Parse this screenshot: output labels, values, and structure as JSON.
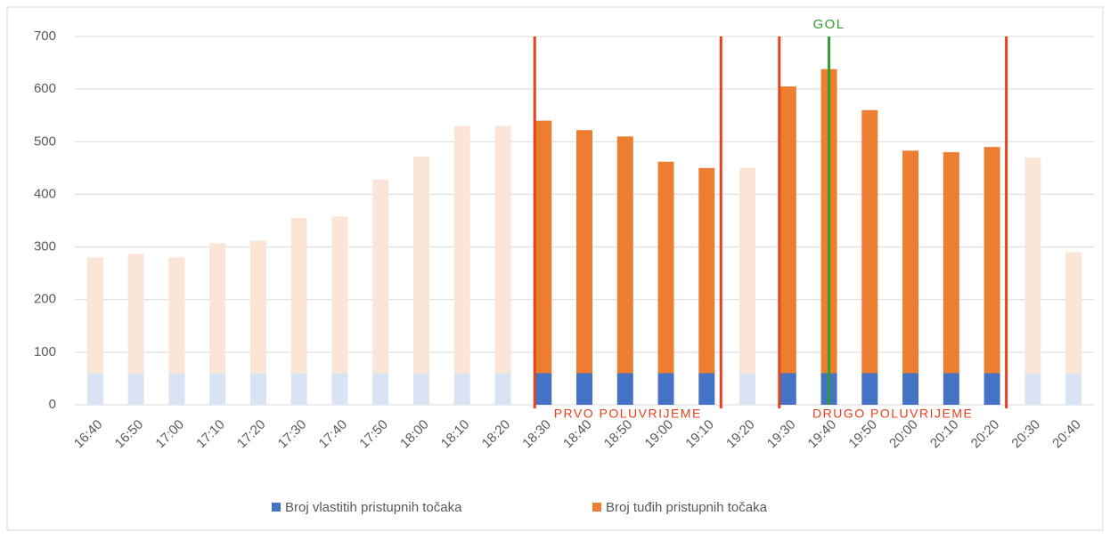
{
  "chart_data": {
    "type": "stacked_bar",
    "categories": [
      "16:40",
      "16:50",
      "17:00",
      "17:10",
      "17:20",
      "17:30",
      "17:40",
      "17:50",
      "18:00",
      "18:10",
      "18:20",
      "18:30",
      "18:40",
      "18:50",
      "19:00",
      "19:10",
      "19:20",
      "19:30",
      "19:40",
      "19:50",
      "20:00",
      "20:10",
      "20:20",
      "20:30",
      "20:40"
    ],
    "series": [
      {
        "name": "Broj vlastitih pristupnih točaka",
        "color": "#4472c4",
        "colors": [
          "#dae3f3",
          "#dae3f3",
          "#dae3f3",
          "#dae3f3",
          "#dae3f3",
          "#dae3f3",
          "#dae3f3",
          "#dae3f3",
          "#dae3f3",
          "#dae3f3",
          "#dae3f3",
          "#4472c4",
          "#4472c4",
          "#4472c4",
          "#4472c4",
          "#4472c4",
          "#dae3f3",
          "#4472c4",
          "#4472c4",
          "#4472c4",
          "#4472c4",
          "#4472c4",
          "#4472c4",
          "#dae3f3",
          "#dae3f3"
        ],
        "values": [
          60,
          60,
          60,
          60,
          60,
          60,
          60,
          60,
          60,
          60,
          60,
          60,
          60,
          60,
          60,
          60,
          60,
          60,
          60,
          60,
          60,
          60,
          60,
          60,
          60
        ]
      },
      {
        "name": "Broj tuđih pristupnih točaka",
        "color": "#ed7d31",
        "colors": [
          "#fbe5d6",
          "#fbe5d6",
          "#fbe5d6",
          "#fbe5d6",
          "#fbe5d6",
          "#fbe5d6",
          "#fbe5d6",
          "#fbe5d6",
          "#fbe5d6",
          "#fbe5d6",
          "#fbe5d6",
          "#ed7d31",
          "#ed7d31",
          "#ed7d31",
          "#ed7d31",
          "#ed7d31",
          "#fbe5d6",
          "#ed7d31",
          "#ed7d31",
          "#ed7d31",
          "#ed7d31",
          "#ed7d31",
          "#ed7d31",
          "#fbe5d6",
          "#fbe5d6"
        ],
        "values": [
          220,
          227,
          220,
          247,
          252,
          295,
          298,
          368,
          412,
          470,
          470,
          480,
          462,
          450,
          402,
          390,
          390,
          545,
          578,
          500,
          423,
          420,
          430,
          410,
          230
        ]
      }
    ],
    "ylim": [
      0,
      700
    ],
    "yticks": [
      0,
      100,
      200,
      300,
      400,
      500,
      600,
      700
    ],
    "grid": true,
    "legend": "bottom",
    "periods": [
      {
        "text": "PRVO POLUVRIJEME",
        "from": "18:30",
        "to": "19:10",
        "color": "#e8401c"
      },
      {
        "text": "DRUGO POLUVRIJEME",
        "from": "19:30",
        "to": "20:20",
        "color": "#e8401c"
      }
    ],
    "events": [
      {
        "text": "GOL",
        "at": "19:40",
        "color": "#2ca02c"
      }
    ]
  }
}
